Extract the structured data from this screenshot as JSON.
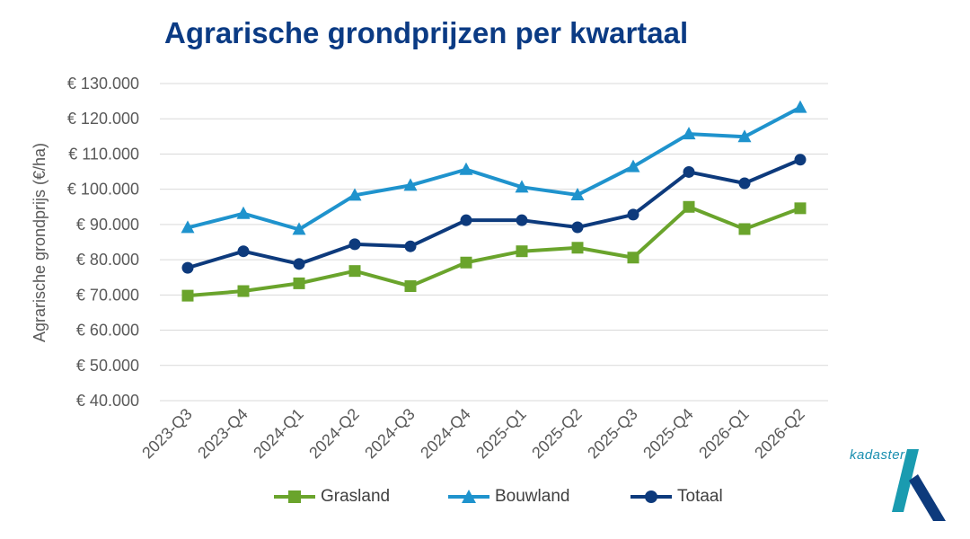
{
  "title": "Agrarische grondprijzen per kwartaal",
  "logo_text": "kadaster",
  "colors": {
    "title": "#0b3b84",
    "grasland": "#6aa42c",
    "bouwland": "#1f93cd",
    "totaal": "#0d3a7c",
    "grid": "#d9d9d9",
    "axis_text": "#595959"
  },
  "chart_data": {
    "type": "line",
    "title": "Agrarische grondprijzen per kwartaal",
    "xlabel": "",
    "ylabel": "Agrarische grondprijs (€/ha)",
    "ylim": [
      40000,
      130000
    ],
    "ytick_step": 10000,
    "yticks": [
      "€ 40.000",
      "€ 50.000",
      "€ 60.000",
      "€ 70.000",
      "€ 80.000",
      "€ 90.000",
      "€ 100.000",
      "€ 110.000",
      "€ 120.000",
      "€ 130.000"
    ],
    "grid": true,
    "legend_position": "bottom",
    "categories": [
      "2023-Q3",
      "2023-Q4",
      "2024-Q1",
      "2024-Q2",
      "2024-Q3",
      "2024-Q4",
      "2025-Q1",
      "2025-Q2",
      "2025-Q3",
      "2025-Q4",
      "2026-Q1",
      "2026-Q2"
    ],
    "series": [
      {
        "name": "Grasland",
        "marker": "square",
        "color": "#6aa42c",
        "values": [
          69800,
          71100,
          73300,
          76800,
          72500,
          79200,
          82400,
          83400,
          80600,
          95000,
          88700,
          94600
        ]
      },
      {
        "name": "Bouwland",
        "marker": "triangle",
        "color": "#1f93cd",
        "values": [
          89100,
          93100,
          88600,
          98300,
          101100,
          105600,
          100600,
          98400,
          106400,
          115700,
          114900,
          123200
        ]
      },
      {
        "name": "Totaal",
        "marker": "circle",
        "color": "#0d3a7c",
        "values": [
          77700,
          82400,
          78800,
          84400,
          83800,
          91200,
          91200,
          89200,
          92800,
          104900,
          101700,
          108400
        ]
      }
    ]
  }
}
